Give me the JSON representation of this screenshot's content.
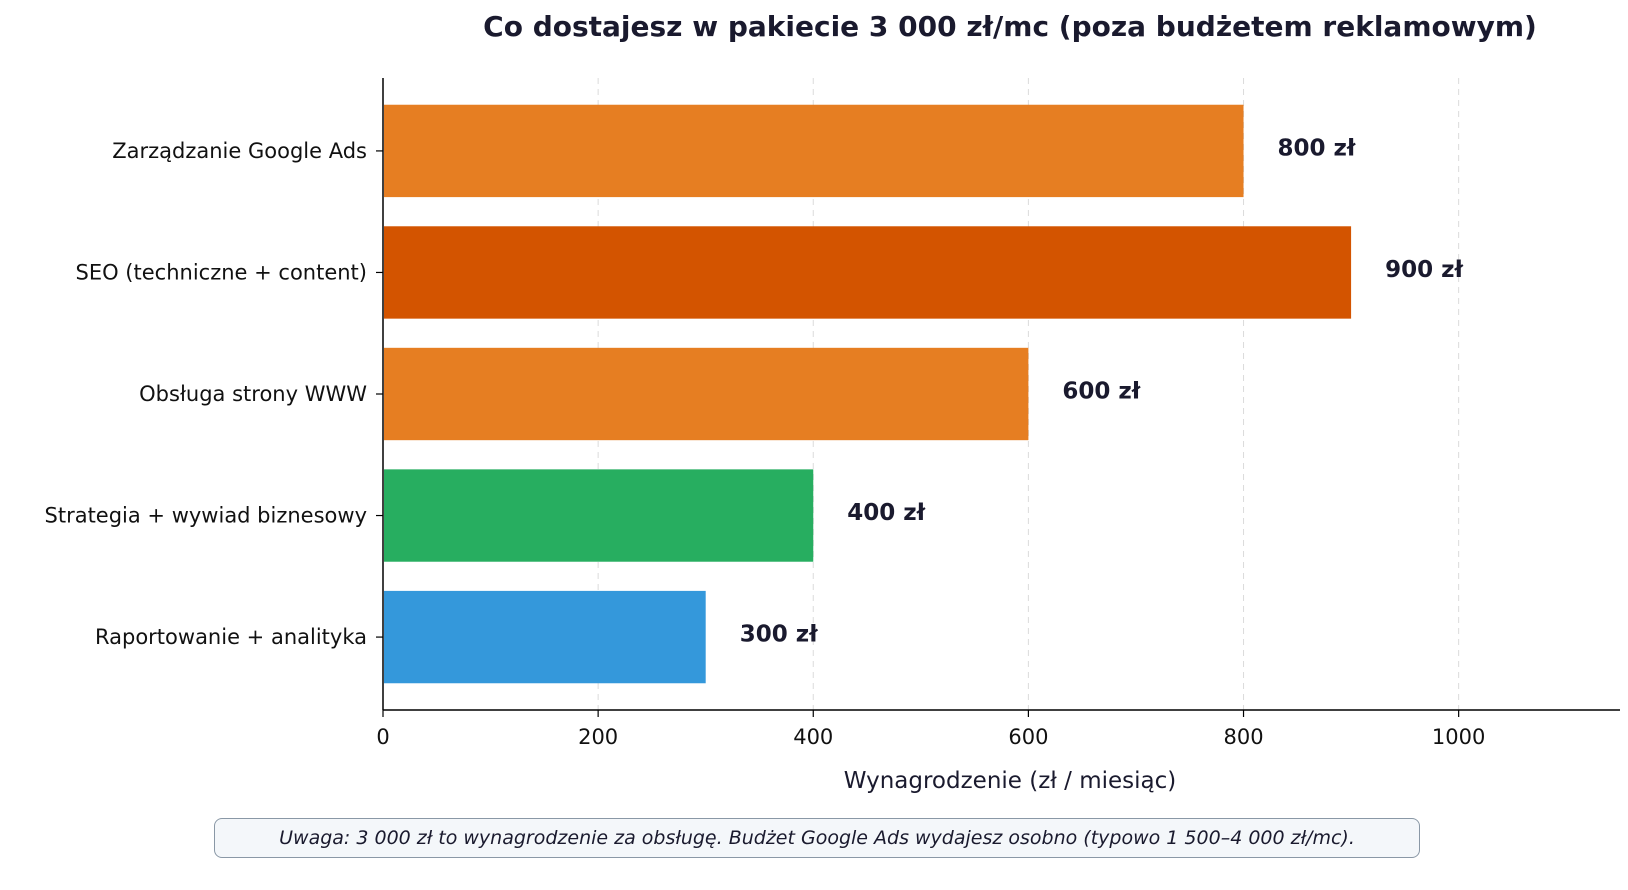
{
  "chart_data": {
    "type": "bar",
    "orientation": "horizontal",
    "title": "Co dostajesz w pakiecie 3 000 zł/mc (poza budżetem reklamowym)",
    "xlabel": "Wynagrodzenie (zł / miesiąc)",
    "ylabel": "",
    "xlim": [
      0,
      1150
    ],
    "xticks": [
      0,
      200,
      400,
      600,
      800,
      1000
    ],
    "grid": "vertical dashed",
    "categories": [
      "Zarządzanie Google Ads",
      "SEO (techniczne + content)",
      "Obsługa strony WWW",
      "Strategia + wywiad biznesowy",
      "Raportowanie + analityka"
    ],
    "values": [
      800,
      900,
      600,
      400,
      300
    ],
    "value_labels": [
      "800 zł",
      "900 zł",
      "600 zł",
      "400 zł",
      "300 zł"
    ],
    "colors": [
      "#e67e22",
      "#d35400",
      "#e67e22",
      "#27ae60",
      "#3498db"
    ]
  },
  "note": "Uwaga: 3 000 zł to wynagrodzenie za obsługę. Budżet Google Ads wydajesz osobno (typowo 1 500–4 000 zł/mc)."
}
